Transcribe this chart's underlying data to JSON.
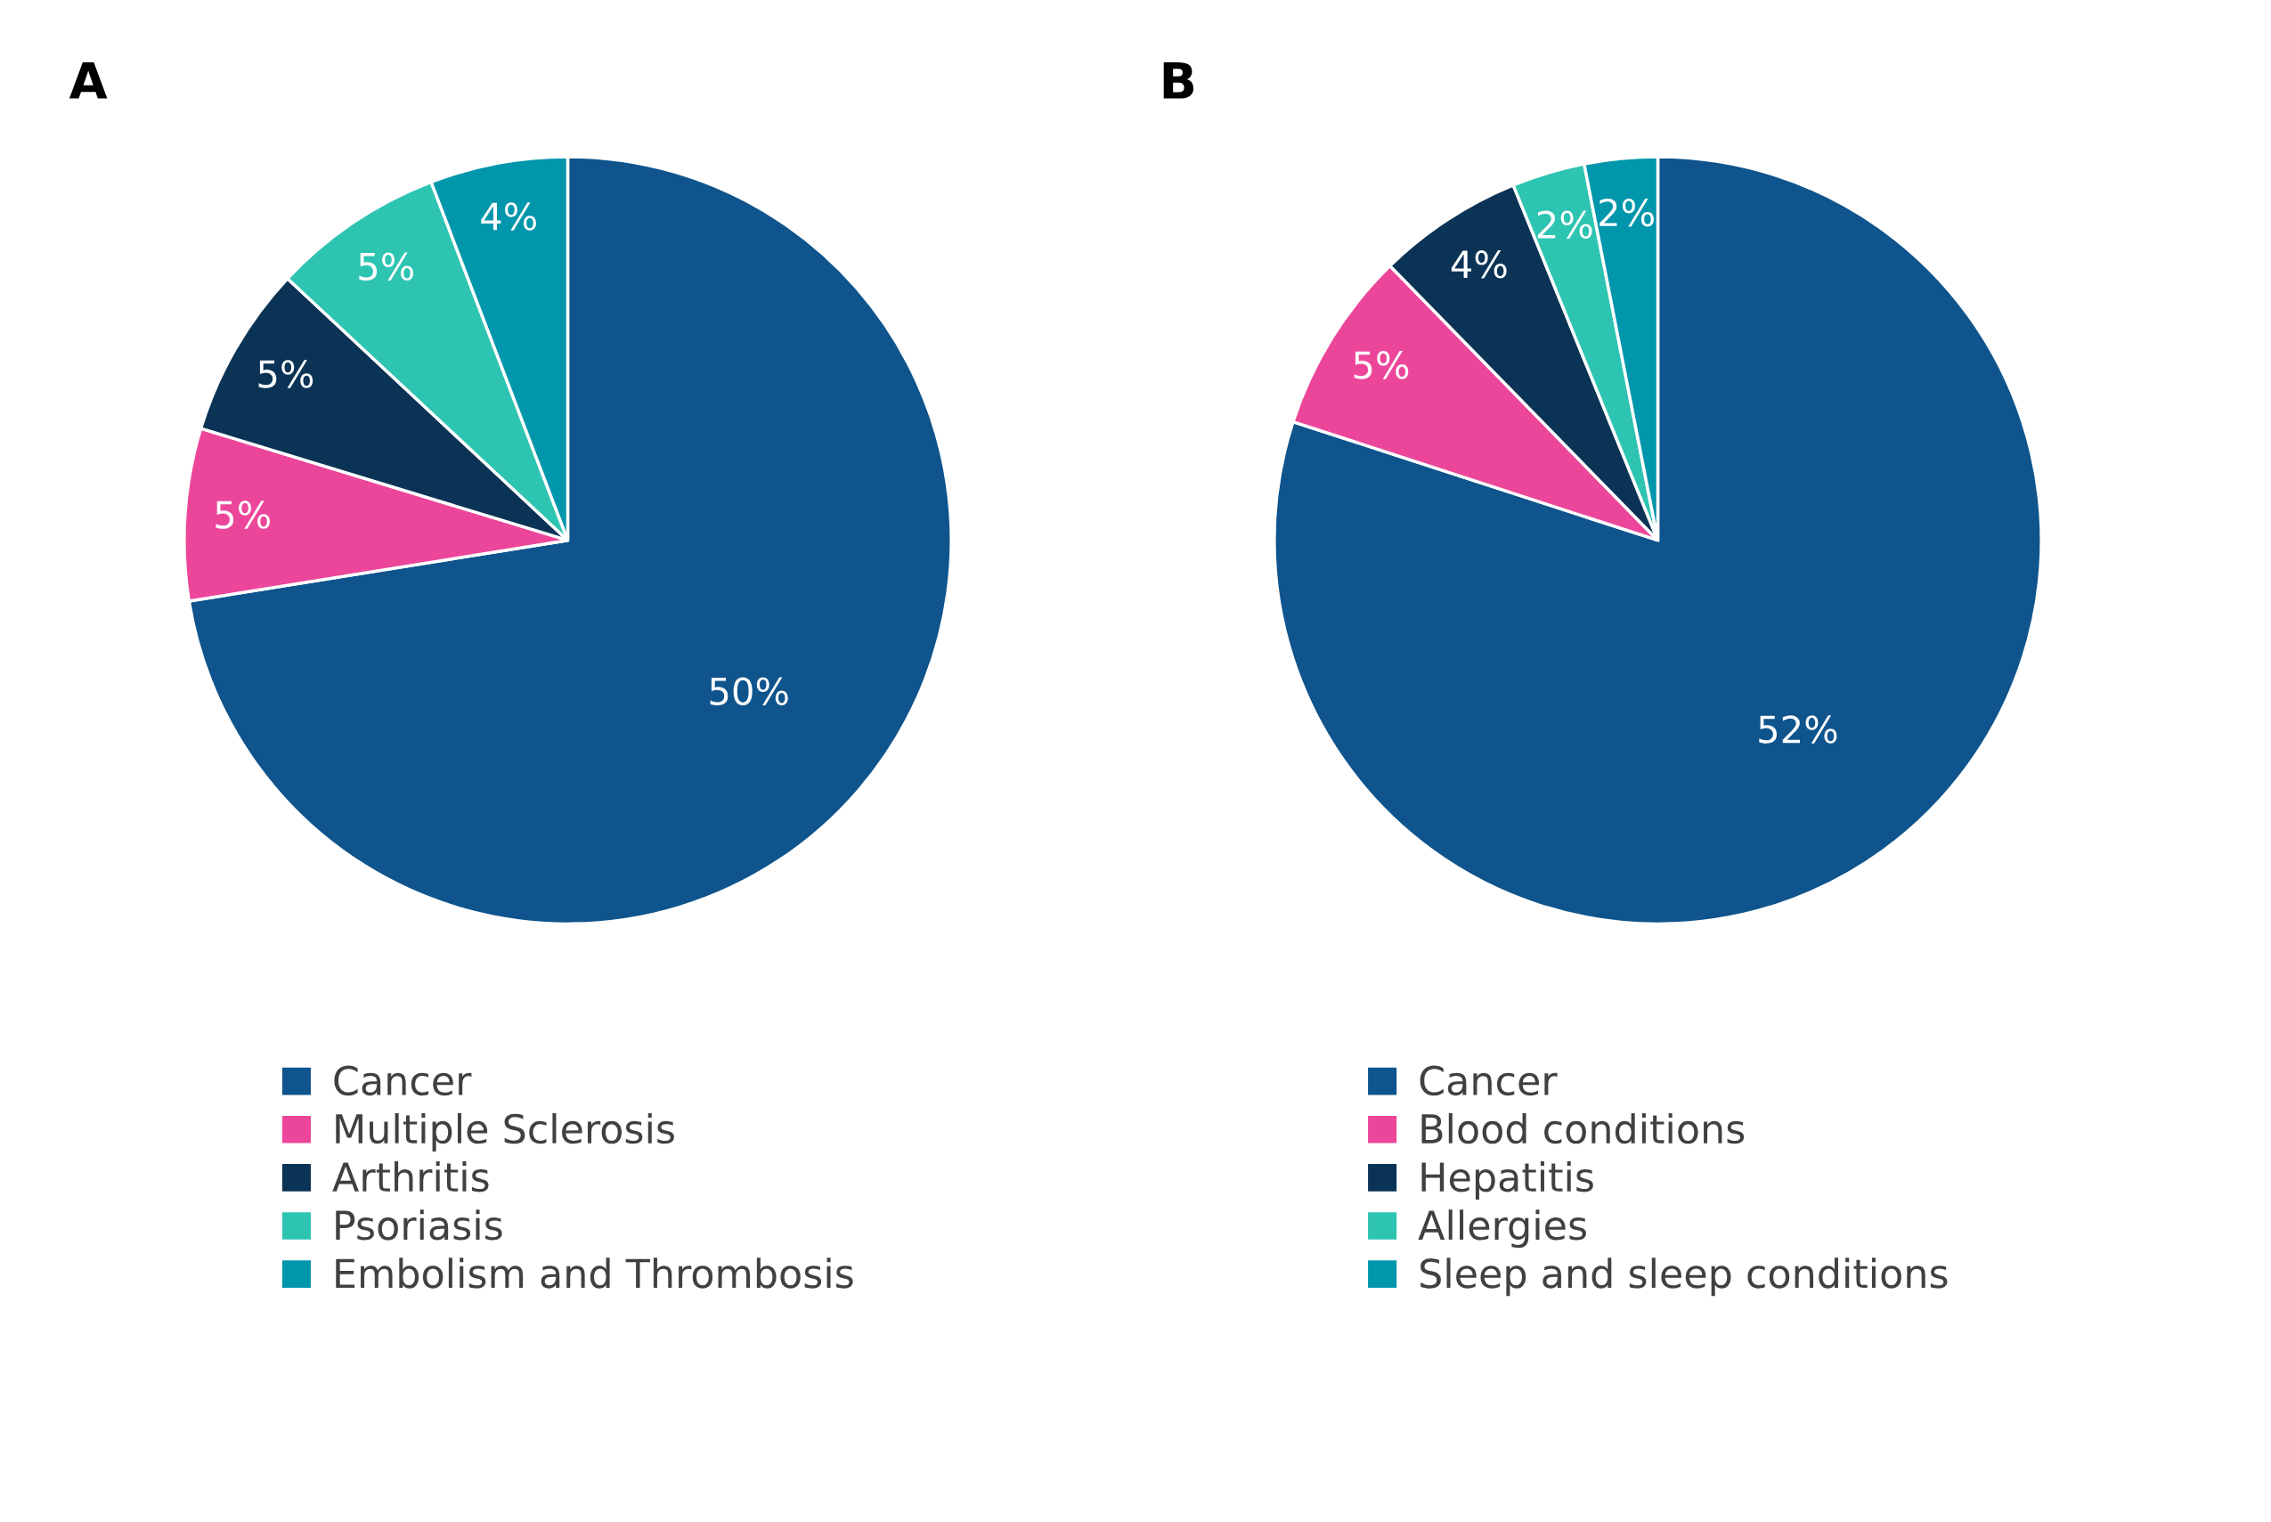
{
  "chart_data": [
    {
      "type": "pie",
      "title": "A",
      "categories": [
        "Cancer",
        "Multiple Sclerosis",
        "Arthritis",
        "Psoriasis",
        "Embolism and Thrombosis"
      ],
      "values": [
        50,
        5,
        5,
        5,
        4
      ],
      "value_labels": [
        "50%",
        "5%",
        "5%",
        "5%",
        "4%"
      ],
      "colors": [
        "#0f548c",
        "#ec469a",
        "#0b3356",
        "#2ec4b2",
        "#0096ab"
      ],
      "legend": "bottom"
    },
    {
      "type": "pie",
      "title": "B",
      "categories": [
        "Cancer",
        "Blood conditions",
        "Hepatitis",
        "Allergies",
        "Sleep and sleep conditions"
      ],
      "values": [
        52,
        5,
        4,
        2,
        2
      ],
      "value_labels": [
        "52%",
        "5%",
        "4%",
        "2%",
        "2%"
      ],
      "colors": [
        "#0f548c",
        "#ec469a",
        "#0b3356",
        "#2ec4b2",
        "#0096ab"
      ],
      "legend": "bottom"
    }
  ]
}
